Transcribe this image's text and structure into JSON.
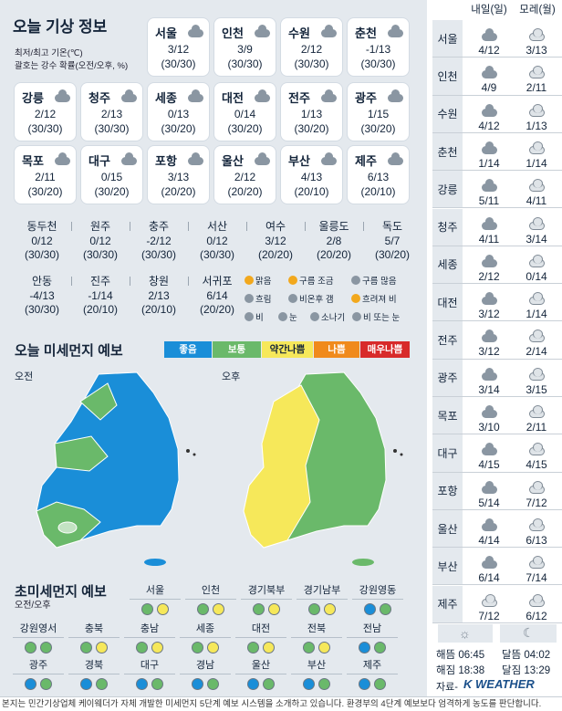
{
  "left": {
    "title": "오늘 기상 정보",
    "sub1": "최저/최고 기온(℃)",
    "sub2": "괄호는 강수 확률(오전/오후, %)",
    "cities": [
      {
        "name": "서울",
        "temp": "3/12",
        "rain": "(30/30)"
      },
      {
        "name": "인천",
        "temp": "3/9",
        "rain": "(30/30)"
      },
      {
        "name": "수원",
        "temp": "2/12",
        "rain": "(30/30)"
      },
      {
        "name": "춘천",
        "temp": "-1/13",
        "rain": "(30/30)"
      },
      {
        "name": "강릉",
        "temp": "2/12",
        "rain": "(30/30)"
      },
      {
        "name": "청주",
        "temp": "2/13",
        "rain": "(30/30)"
      },
      {
        "name": "세종",
        "temp": "0/13",
        "rain": "(30/20)"
      },
      {
        "name": "대전",
        "temp": "0/14",
        "rain": "(30/20)"
      },
      {
        "name": "전주",
        "temp": "1/13",
        "rain": "(30/20)"
      },
      {
        "name": "광주",
        "temp": "1/15",
        "rain": "(30/20)"
      },
      {
        "name": "목포",
        "temp": "2/11",
        "rain": "(30/20)"
      },
      {
        "name": "대구",
        "temp": "0/15",
        "rain": "(30/20)"
      },
      {
        "name": "포항",
        "temp": "3/13",
        "rain": "(20/20)"
      },
      {
        "name": "울산",
        "temp": "2/12",
        "rain": "(20/20)"
      },
      {
        "name": "부산",
        "temp": "4/13",
        "rain": "(20/10)"
      },
      {
        "name": "제주",
        "temp": "6/13",
        "rain": "(20/10)"
      }
    ],
    "small": [
      {
        "name": "동두천",
        "temp": "0/12",
        "rain": "(30/30)"
      },
      {
        "name": "원주",
        "temp": "0/12",
        "rain": "(30/30)"
      },
      {
        "name": "충주",
        "temp": "-2/12",
        "rain": "(30/30)"
      },
      {
        "name": "서산",
        "temp": "0/12",
        "rain": "(30/30)"
      },
      {
        "name": "여수",
        "temp": "3/12",
        "rain": "(20/20)"
      },
      {
        "name": "울릉도",
        "temp": "2/8",
        "rain": "(20/20)"
      },
      {
        "name": "독도",
        "temp": "5/7",
        "rain": "(30/20)"
      },
      {
        "name": "안동",
        "temp": "-4/13",
        "rain": "(30/30)"
      },
      {
        "name": "진주",
        "temp": "-1/14",
        "rain": "(20/10)"
      },
      {
        "name": "창원",
        "temp": "2/13",
        "rain": "(20/10)"
      },
      {
        "name": "서귀포",
        "temp": "6/14",
        "rain": "(20/20)"
      }
    ],
    "legend": [
      "맑음",
      "구름 조금",
      "구름 많음",
      "흐림",
      "비온후 갬",
      "흐려져 비",
      "비",
      "눈",
      "소나기",
      "비 또는 눈"
    ],
    "pm_title": "오늘 미세먼지 예보",
    "pm_levels": [
      {
        "label": "좋음",
        "color": "#1a8ed8"
      },
      {
        "label": "보통",
        "color": "#6ab96a"
      },
      {
        "label": "약간나쁨",
        "color": "#f6e85a"
      },
      {
        "label": "나쁨",
        "color": "#f08a1c"
      },
      {
        "label": "매우나쁨",
        "color": "#d82a2a"
      }
    ],
    "am": "오전",
    "pm": "오후",
    "uf_title": "초미세먼지 예보",
    "uf_sub": "오전/오후",
    "uf": [
      {
        "name": "서울",
        "am": "green",
        "pm": "yellow"
      },
      {
        "name": "인천",
        "am": "green",
        "pm": "yellow"
      },
      {
        "name": "경기북부",
        "am": "green",
        "pm": "yellow"
      },
      {
        "name": "경기남부",
        "am": "green",
        "pm": "yellow"
      },
      {
        "name": "강원영동",
        "am": "blue",
        "pm": "green"
      },
      {
        "name": "강원영서",
        "am": "green",
        "pm": "green"
      },
      {
        "name": "충북",
        "am": "green",
        "pm": "yellow"
      },
      {
        "name": "충남",
        "am": "green",
        "pm": "yellow"
      },
      {
        "name": "세종",
        "am": "green",
        "pm": "yellow"
      },
      {
        "name": "대전",
        "am": "green",
        "pm": "yellow"
      },
      {
        "name": "전북",
        "am": "green",
        "pm": "yellow"
      },
      {
        "name": "전남",
        "am": "blue",
        "pm": "green"
      },
      {
        "name": "광주",
        "am": "blue",
        "pm": "green"
      },
      {
        "name": "경북",
        "am": "blue",
        "pm": "green"
      },
      {
        "name": "대구",
        "am": "blue",
        "pm": "green"
      },
      {
        "name": "경남",
        "am": "blue",
        "pm": "green"
      },
      {
        "name": "울산",
        "am": "blue",
        "pm": "green"
      },
      {
        "name": "부산",
        "am": "blue",
        "pm": "green"
      },
      {
        "name": "제주",
        "am": "blue",
        "pm": "green"
      }
    ]
  },
  "right": {
    "h1": "내일(일)",
    "h2": "모레(월)",
    "rows": [
      {
        "city": "서울",
        "d1": "4/12",
        "d2": "3/13"
      },
      {
        "city": "인천",
        "d1": "4/9",
        "d2": "2/11"
      },
      {
        "city": "수원",
        "d1": "4/12",
        "d2": "1/13"
      },
      {
        "city": "춘천",
        "d1": "1/14",
        "d2": "1/14"
      },
      {
        "city": "강릉",
        "d1": "5/11",
        "d2": "4/11"
      },
      {
        "city": "청주",
        "d1": "4/11",
        "d2": "3/14"
      },
      {
        "city": "세종",
        "d1": "2/12",
        "d2": "0/14"
      },
      {
        "city": "대전",
        "d1": "3/12",
        "d2": "1/14"
      },
      {
        "city": "전주",
        "d1": "3/12",
        "d2": "2/14"
      },
      {
        "city": "광주",
        "d1": "3/14",
        "d2": "3/15"
      },
      {
        "city": "목포",
        "d1": "3/10",
        "d2": "2/11"
      },
      {
        "city": "대구",
        "d1": "4/15",
        "d2": "4/15"
      },
      {
        "city": "포항",
        "d1": "5/14",
        "d2": "7/12"
      },
      {
        "city": "울산",
        "d1": "4/14",
        "d2": "6/13"
      },
      {
        "city": "부산",
        "d1": "6/14",
        "d2": "7/14"
      },
      {
        "city": "제주",
        "d1": "7/12",
        "d2": "6/12"
      }
    ],
    "sunrise": "해뜸 06:45",
    "sunset": "해짐 18:38",
    "moonrise": "달뜸 04:02",
    "moonset": "달짐 13:29",
    "source": "자료-",
    "logo": "K WEATHER"
  },
  "footer": "본지는 민간기상업체 케이웨더가 자체 개발한 미세먼지 5단계 예보 시스템을 소개하고 있습니다. 환경부의 4단계 예보보다 엄격하게 농도를 판단합니다."
}
